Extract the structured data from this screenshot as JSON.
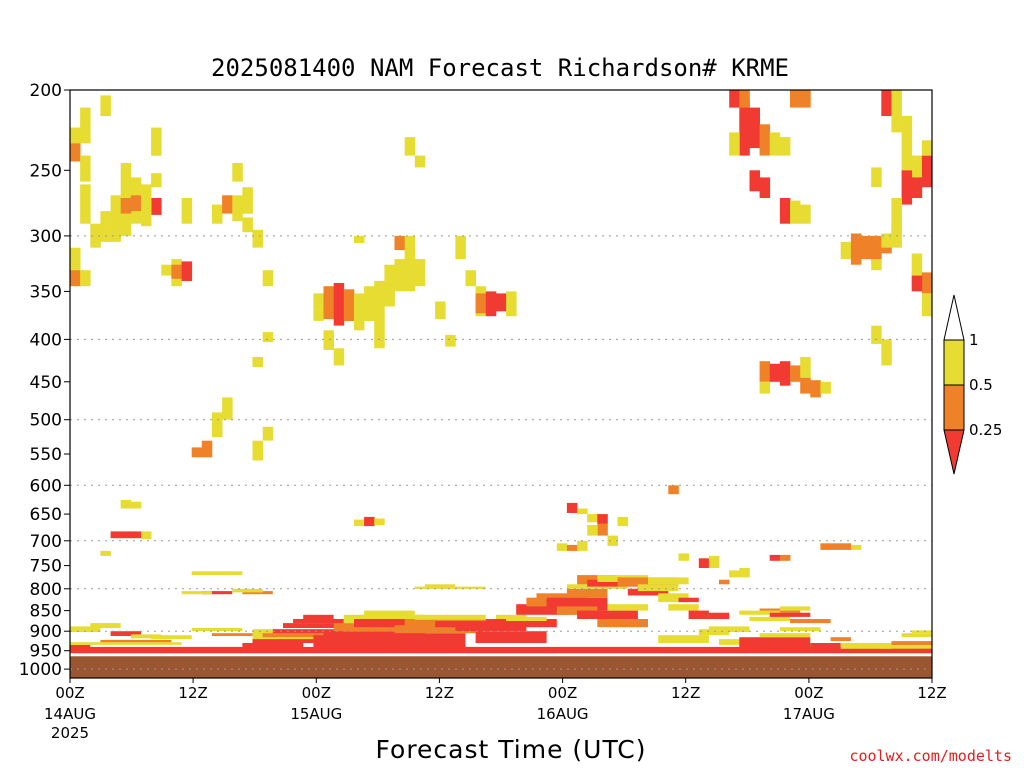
{
  "chart_data": {
    "type": "heatmap",
    "title": "2025081400 NAM Forecast Richardson# KRME",
    "xlabel": "Forecast Time (UTC)",
    "credit": "coolwx.com/modelts",
    "y_axis": {
      "scale": "pressure (hPa), inverted",
      "range": [
        1025,
        200
      ],
      "ticks": [
        "200",
        "250",
        "300",
        "350",
        "400",
        "450",
        "500",
        "550",
        "600",
        "650",
        "700",
        "750",
        "800",
        "850",
        "900",
        "950",
        "1000"
      ],
      "gridlines": [
        300,
        400,
        500,
        600,
        700,
        800,
        900,
        1000
      ]
    },
    "x_axis": {
      "range_hours": [
        0,
        84
      ],
      "ticks": [
        {
          "hour": 0,
          "label": "00Z",
          "sub": "14AUG",
          "sub2": "2025"
        },
        {
          "hour": 12,
          "label": "12Z"
        },
        {
          "hour": 24,
          "label": "00Z",
          "sub": "15AUG"
        },
        {
          "hour": 36,
          "label": "12Z"
        },
        {
          "hour": 48,
          "label": "00Z",
          "sub": "16AUG"
        },
        {
          "hour": 60,
          "label": "12Z"
        },
        {
          "hour": 72,
          "label": "00Z",
          "sub": "17AUG"
        },
        {
          "hour": 84,
          "label": "12Z"
        }
      ]
    },
    "colorbar": {
      "levels": [
        "1",
        "0.5",
        "0.25"
      ],
      "bins": [
        {
          "range": "<0.25",
          "color": "#f03a32"
        },
        {
          "range": "0.25-0.5",
          "color": "#ef8228"
        },
        {
          "range": "0.5-1",
          "color": "#e6dc32"
        },
        {
          "range": ">1",
          "color": "#ffffff"
        }
      ]
    },
    "ground": {
      "color": "#9a5531",
      "top_hpa": 965
    },
    "cells": [
      [
        0,
        222,
        240,
        "y"
      ],
      [
        0,
        232,
        244,
        "o"
      ],
      [
        1,
        210,
        232,
        "y"
      ],
      [
        1,
        240,
        258,
        "y"
      ],
      [
        0,
        328,
        345,
        "o"
      ],
      [
        0,
        310,
        330,
        "y"
      ],
      [
        1,
        330,
        345,
        "y"
      ],
      [
        3,
        203,
        215,
        "y"
      ],
      [
        1,
        260,
        290,
        "y"
      ],
      [
        2,
        290,
        310,
        "y"
      ],
      [
        3,
        280,
        305,
        "y"
      ],
      [
        4,
        268,
        305,
        "y"
      ],
      [
        5,
        245,
        300,
        "y"
      ],
      [
        6,
        255,
        290,
        "y"
      ],
      [
        5,
        270,
        282,
        "o"
      ],
      [
        6,
        268,
        280,
        "o"
      ],
      [
        7,
        265,
        285,
        "o"
      ],
      [
        8,
        270,
        283,
        "r"
      ],
      [
        7,
        260,
        292,
        "y"
      ],
      [
        8,
        222,
        240,
        "y"
      ],
      [
        8,
        252,
        262,
        "y"
      ],
      [
        9,
        325,
        335,
        "y"
      ],
      [
        10,
        320,
        345,
        "y"
      ],
      [
        10,
        325,
        338,
        "o"
      ],
      [
        11,
        322,
        340,
        "r"
      ],
      [
        11,
        270,
        290,
        "y"
      ],
      [
        14,
        275,
        290,
        "y"
      ],
      [
        15,
        268,
        282,
        "o"
      ],
      [
        16,
        268,
        288,
        "y"
      ],
      [
        17,
        262,
        282,
        "y"
      ],
      [
        17,
        285,
        297,
        "y"
      ],
      [
        18,
        295,
        310,
        "y"
      ],
      [
        16,
        245,
        258,
        "y"
      ],
      [
        19,
        330,
        345,
        "y"
      ],
      [
        19,
        392,
        403,
        "y"
      ],
      [
        18,
        420,
        432,
        "y"
      ],
      [
        24,
        352,
        368,
        "y"
      ],
      [
        24,
        368,
        380,
        "y"
      ],
      [
        25,
        345,
        378,
        "o"
      ],
      [
        26,
        342,
        385,
        "r"
      ],
      [
        27,
        348,
        380,
        "o"
      ],
      [
        25,
        390,
        412,
        "y"
      ],
      [
        26,
        410,
        430,
        "y"
      ],
      [
        28,
        352,
        390,
        "y"
      ],
      [
        29,
        345,
        380,
        "y"
      ],
      [
        30,
        340,
        410,
        "y"
      ],
      [
        31,
        325,
        365,
        "y"
      ],
      [
        32,
        320,
        350,
        "y"
      ],
      [
        33,
        305,
        350,
        "y"
      ],
      [
        34,
        320,
        345,
        "y"
      ],
      [
        28,
        300,
        306,
        "y"
      ],
      [
        32,
        300,
        312,
        "o"
      ],
      [
        33,
        300,
        320,
        "y"
      ],
      [
        33,
        228,
        240,
        "y"
      ],
      [
        34,
        240,
        248,
        "y"
      ],
      [
        36,
        360,
        378,
        "y"
      ],
      [
        37,
        395,
        408,
        "y"
      ],
      [
        38,
        300,
        320,
        "y"
      ],
      [
        39,
        330,
        345,
        "y"
      ],
      [
        40,
        345,
        375,
        "y"
      ],
      [
        40,
        352,
        372,
        "o"
      ],
      [
        41,
        350,
        375,
        "r"
      ],
      [
        42,
        352,
        370,
        "r"
      ],
      [
        43,
        350,
        375,
        "y"
      ],
      [
        19,
        510,
        530,
        "y"
      ],
      [
        18,
        530,
        560,
        "y"
      ],
      [
        12,
        540,
        555,
        "o"
      ],
      [
        13,
        530,
        555,
        "o"
      ],
      [
        14,
        490,
        525,
        "y"
      ],
      [
        15,
        470,
        500,
        "y"
      ],
      [
        5,
        625,
        640,
        "y"
      ],
      [
        6,
        628,
        640,
        "y"
      ],
      [
        4,
        682,
        695,
        "r"
      ],
      [
        5,
        682,
        695,
        "r"
      ],
      [
        6,
        682,
        695,
        "r"
      ],
      [
        7,
        682,
        697,
        "y"
      ],
      [
        3,
        720,
        730,
        "y"
      ],
      [
        28,
        660,
        672,
        "y"
      ],
      [
        29,
        655,
        672,
        "r"
      ],
      [
        30,
        658,
        670,
        "y"
      ],
      [
        49,
        630,
        648,
        "r"
      ],
      [
        50,
        640,
        650,
        "y"
      ],
      [
        51,
        650,
        665,
        "y"
      ],
      [
        52,
        650,
        668,
        "r"
      ],
      [
        52,
        668,
        690,
        "o"
      ],
      [
        51,
        670,
        690,
        "y"
      ],
      [
        54,
        655,
        672,
        "y"
      ],
      [
        53,
        690,
        710,
        "y"
      ],
      [
        48,
        705,
        720,
        "y"
      ],
      [
        49,
        708,
        720,
        "o"
      ],
      [
        50,
        700,
        720,
        "y"
      ],
      [
        59,
        600,
        615,
        "o"
      ],
      [
        68,
        425,
        450,
        "o"
      ],
      [
        68,
        450,
        465,
        "y"
      ],
      [
        69,
        428,
        450,
        "r"
      ],
      [
        70,
        425,
        455,
        "r"
      ],
      [
        71,
        430,
        450,
        "o"
      ],
      [
        72,
        420,
        445,
        "y"
      ],
      [
        72,
        445,
        465,
        "o"
      ],
      [
        73,
        448,
        470,
        "o"
      ],
      [
        74,
        450,
        465,
        "y"
      ],
      [
        67,
        210,
        235,
        "r"
      ],
      [
        68,
        220,
        240,
        "o"
      ],
      [
        66,
        205,
        240,
        "r"
      ],
      [
        65,
        225,
        240,
        "y"
      ],
      [
        69,
        225,
        240,
        "y"
      ],
      [
        68,
        255,
        270,
        "r"
      ],
      [
        67,
        250,
        265,
        "r"
      ],
      [
        70,
        270,
        290,
        "r"
      ],
      [
        71,
        272,
        290,
        "y"
      ],
      [
        72,
        275,
        290,
        "y"
      ],
      [
        71,
        200,
        210,
        "o"
      ],
      [
        72,
        200,
        210,
        "o"
      ],
      [
        70,
        228,
        240,
        "y"
      ],
      [
        65,
        200,
        210,
        "r"
      ],
      [
        66,
        200,
        210,
        "o"
      ],
      [
        76,
        305,
        320,
        "y"
      ],
      [
        77,
        298,
        325,
        "o"
      ],
      [
        78,
        300,
        320,
        "o"
      ],
      [
        79,
        300,
        322,
        "o"
      ],
      [
        80,
        305,
        315,
        "o"
      ],
      [
        80,
        298,
        310,
        "y"
      ],
      [
        81,
        290,
        310,
        "y"
      ],
      [
        79,
        320,
        330,
        "y"
      ],
      [
        80,
        200,
        215,
        "r"
      ],
      [
        81,
        200,
        225,
        "y"
      ],
      [
        82,
        215,
        250,
        "y"
      ],
      [
        83,
        240,
        262,
        "y"
      ],
      [
        84,
        240,
        262,
        "r"
      ],
      [
        82,
        250,
        275,
        "r"
      ],
      [
        83,
        255,
        270,
        "r"
      ],
      [
        84,
        230,
        240,
        "y"
      ],
      [
        79,
        248,
        262,
        "y"
      ],
      [
        81,
        270,
        300,
        "y"
      ],
      [
        83,
        315,
        345,
        "y"
      ],
      [
        84,
        332,
        352,
        "o"
      ],
      [
        83,
        335,
        350,
        "r"
      ],
      [
        84,
        352,
        375,
        "y"
      ],
      [
        79,
        385,
        405,
        "y"
      ],
      [
        80,
        400,
        430,
        "y"
      ],
      [
        74,
        705,
        718,
        "o"
      ],
      [
        75,
        705,
        718,
        "o"
      ],
      [
        76,
        705,
        718,
        "o"
      ],
      [
        77,
        708,
        718,
        "y"
      ],
      [
        69,
        728,
        740,
        "r"
      ],
      [
        70,
        728,
        740,
        "o"
      ],
      [
        60,
        725,
        740,
        "y"
      ],
      [
        62,
        735,
        755,
        "r"
      ],
      [
        63,
        730,
        755,
        "y"
      ],
      [
        65,
        760,
        775,
        "y"
      ],
      [
        66,
        755,
        775,
        "y"
      ],
      [
        64,
        780,
        790,
        "o"
      ]
    ],
    "low_bands": [
      [
        0,
        1,
        935,
        948,
        "r"
      ],
      [
        0,
        84,
        940,
        957,
        "r"
      ],
      [
        0,
        10,
        928,
        935,
        "y"
      ],
      [
        3,
        9,
        922,
        928,
        "o"
      ],
      [
        0,
        2,
        888,
        902,
        "y"
      ],
      [
        2,
        4,
        880,
        892,
        "y"
      ],
      [
        4,
        6,
        900,
        912,
        "r"
      ],
      [
        6,
        8,
        908,
        918,
        "y"
      ],
      [
        8,
        11,
        910,
        920,
        "y"
      ],
      [
        12,
        16,
        892,
        900,
        "y"
      ],
      [
        14,
        18,
        905,
        912,
        "o"
      ],
      [
        18,
        24,
        895,
        920,
        "y"
      ],
      [
        12,
        16,
        762,
        770,
        "y"
      ],
      [
        13,
        15,
        805,
        812,
        "r"
      ],
      [
        11,
        13,
        805,
        812,
        "y"
      ],
      [
        17,
        19,
        805,
        812,
        "o"
      ],
      [
        16,
        18,
        800,
        808,
        "y"
      ],
      [
        17,
        22,
        930,
        945,
        "r"
      ],
      [
        18,
        24,
        920,
        930,
        "r"
      ],
      [
        19,
        25,
        905,
        915,
        "o"
      ],
      [
        20,
        26,
        895,
        905,
        "r"
      ],
      [
        21,
        26,
        880,
        892,
        "r"
      ],
      [
        22,
        26,
        870,
        880,
        "r"
      ],
      [
        23,
        25,
        860,
        870,
        "r"
      ],
      [
        24,
        28,
        910,
        930,
        "r"
      ],
      [
        24,
        30,
        930,
        955,
        "r"
      ],
      [
        25,
        34,
        900,
        940,
        "r"
      ],
      [
        26,
        32,
        880,
        900,
        "o"
      ],
      [
        27,
        34,
        860,
        880,
        "y"
      ],
      [
        28,
        35,
        870,
        890,
        "r"
      ],
      [
        29,
        33,
        850,
        865,
        "y"
      ],
      [
        30,
        38,
        905,
        948,
        "r"
      ],
      [
        32,
        40,
        885,
        905,
        "o"
      ],
      [
        33,
        42,
        870,
        888,
        "o"
      ],
      [
        34,
        40,
        860,
        872,
        "y"
      ],
      [
        36,
        42,
        875,
        890,
        "r"
      ],
      [
        34,
        40,
        795,
        800,
        "y"
      ],
      [
        35,
        37,
        790,
        798,
        "y"
      ],
      [
        38,
        44,
        880,
        900,
        "r"
      ],
      [
        40,
        46,
        900,
        930,
        "r"
      ],
      [
        41,
        47,
        870,
        890,
        "r"
      ],
      [
        42,
        44,
        860,
        870,
        "y"
      ],
      [
        43,
        46,
        865,
        875,
        "y"
      ],
      [
        44,
        48,
        835,
        860,
        "r"
      ],
      [
        45,
        48,
        820,
        840,
        "o"
      ],
      [
        46,
        50,
        810,
        830,
        "o"
      ],
      [
        47,
        52,
        820,
        850,
        "r"
      ],
      [
        48,
        51,
        840,
        860,
        "o"
      ],
      [
        49,
        52,
        800,
        820,
        "o"
      ],
      [
        49,
        54,
        790,
        800,
        "y"
      ],
      [
        50,
        53,
        770,
        790,
        "o"
      ],
      [
        51,
        55,
        780,
        795,
        "r"
      ],
      [
        52,
        56,
        770,
        785,
        "y"
      ],
      [
        50,
        55,
        850,
        870,
        "r"
      ],
      [
        52,
        56,
        870,
        890,
        "o"
      ],
      [
        53,
        56,
        835,
        850,
        "y"
      ],
      [
        54,
        59,
        775,
        795,
        "o"
      ],
      [
        55,
        58,
        800,
        815,
        "r"
      ],
      [
        56,
        59,
        790,
        805,
        "y"
      ],
      [
        57,
        60,
        775,
        790,
        "y"
      ],
      [
        58,
        60,
        810,
        830,
        "y"
      ],
      [
        59,
        61,
        835,
        850,
        "y"
      ],
      [
        60,
        61,
        820,
        830,
        "r"
      ],
      [
        61,
        62,
        850,
        870,
        "r"
      ],
      [
        58,
        62,
        910,
        930,
        "y"
      ],
      [
        62,
        64,
        895,
        910,
        "y"
      ],
      [
        63,
        64,
        855,
        870,
        "r"
      ],
      [
        64,
        66,
        920,
        935,
        "y"
      ],
      [
        66,
        72,
        915,
        945,
        "r"
      ],
      [
        68,
        72,
        905,
        915,
        "y"
      ],
      [
        70,
        73,
        890,
        900,
        "y"
      ],
      [
        71,
        74,
        870,
        880,
        "o"
      ],
      [
        73,
        75,
        930,
        945,
        "r"
      ],
      [
        75,
        76,
        915,
        925,
        "o"
      ],
      [
        76,
        80,
        930,
        945,
        "y"
      ],
      [
        80,
        84,
        935,
        945,
        "y"
      ],
      [
        81,
        84,
        925,
        935,
        "o"
      ],
      [
        82,
        84,
        905,
        915,
        "y"
      ],
      [
        83,
        84,
        898,
        905,
        "y"
      ],
      [
        63,
        66,
        888,
        902,
        "y"
      ],
      [
        67,
        70,
        865,
        875,
        "y"
      ],
      [
        68,
        71,
        845,
        855,
        "o"
      ],
      [
        70,
        72,
        840,
        850,
        "y"
      ],
      [
        66,
        69,
        850,
        860,
        "y"
      ],
      [
        69,
        72,
        855,
        865,
        "r"
      ]
    ]
  }
}
